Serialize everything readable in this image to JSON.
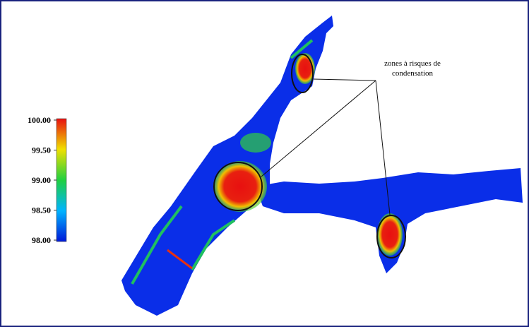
{
  "colorbar": {
    "range": [
      98,
      100
    ],
    "ticks": [
      {
        "value": 100,
        "label": "100.00"
      },
      {
        "value": 99.5,
        "label": "99.50"
      },
      {
        "value": 99,
        "label": "99.00"
      },
      {
        "value": 98.5,
        "label": "98.50"
      },
      {
        "value": 98,
        "label": "98.00"
      }
    ]
  },
  "annotation": {
    "lines": [
      "zones à risques de",
      "condensation"
    ]
  }
}
